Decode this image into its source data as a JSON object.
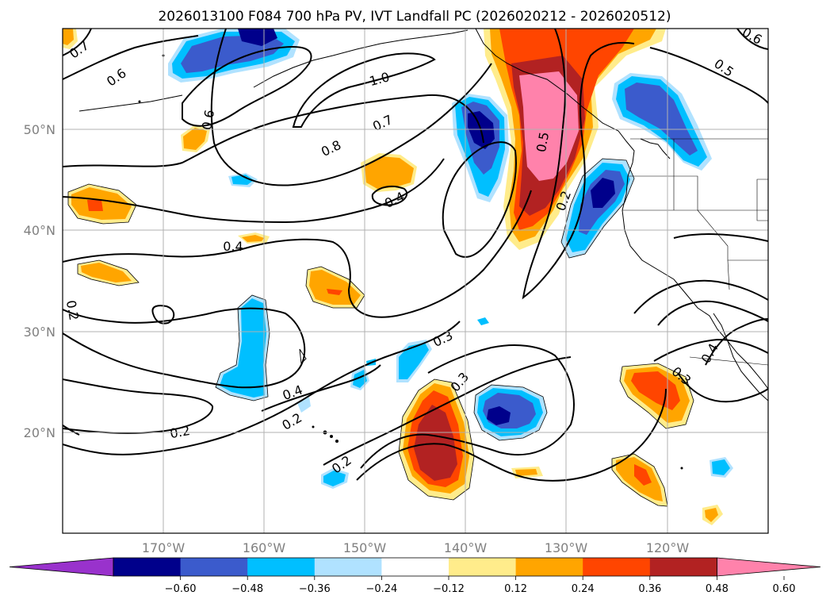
{
  "title": "2026013100 F084 700 hPa PV, IVT Landfall PC (2026020212 - 2026020512)",
  "lat_labels": [
    "50°N",
    "40°N",
    "30°N",
    "20°N"
  ],
  "lon_labels": [
    "170°W",
    "160°W",
    "150°W",
    "140°W",
    "130°W",
    "120°W"
  ],
  "colorbar": {
    "ticks": [
      "−0.60",
      "−0.48",
      "−0.36",
      "−0.24",
      "−0.12",
      "0.12",
      "0.24",
      "0.36",
      "0.48",
      "0.60"
    ],
    "colors": [
      "#9932cc",
      "#00008b",
      "#3b5bcc",
      "#00bfff",
      "#b0e2ff",
      "#ffffff",
      "#ffec8b",
      "#ffa500",
      "#ff4500",
      "#b22222",
      "#ff82ab"
    ]
  },
  "contour_labels": [
    {
      "text": "0.7"
    },
    {
      "text": "0.6"
    },
    {
      "text": "0.6"
    },
    {
      "text": "1.0"
    },
    {
      "text": "0.7"
    },
    {
      "text": "0.8"
    },
    {
      "text": "0.4"
    },
    {
      "text": "0.4"
    },
    {
      "text": "0.5"
    },
    {
      "text": "0.2"
    },
    {
      "text": "0.5"
    },
    {
      "text": "0.6"
    },
    {
      "text": "0.2"
    },
    {
      "text": "0.3"
    },
    {
      "text": "0.3"
    },
    {
      "text": "0.4"
    },
    {
      "text": "0.2"
    },
    {
      "text": "0.2"
    },
    {
      "text": "0.2"
    },
    {
      "text": "0.3"
    },
    {
      "text": "0.4"
    }
  ]
}
